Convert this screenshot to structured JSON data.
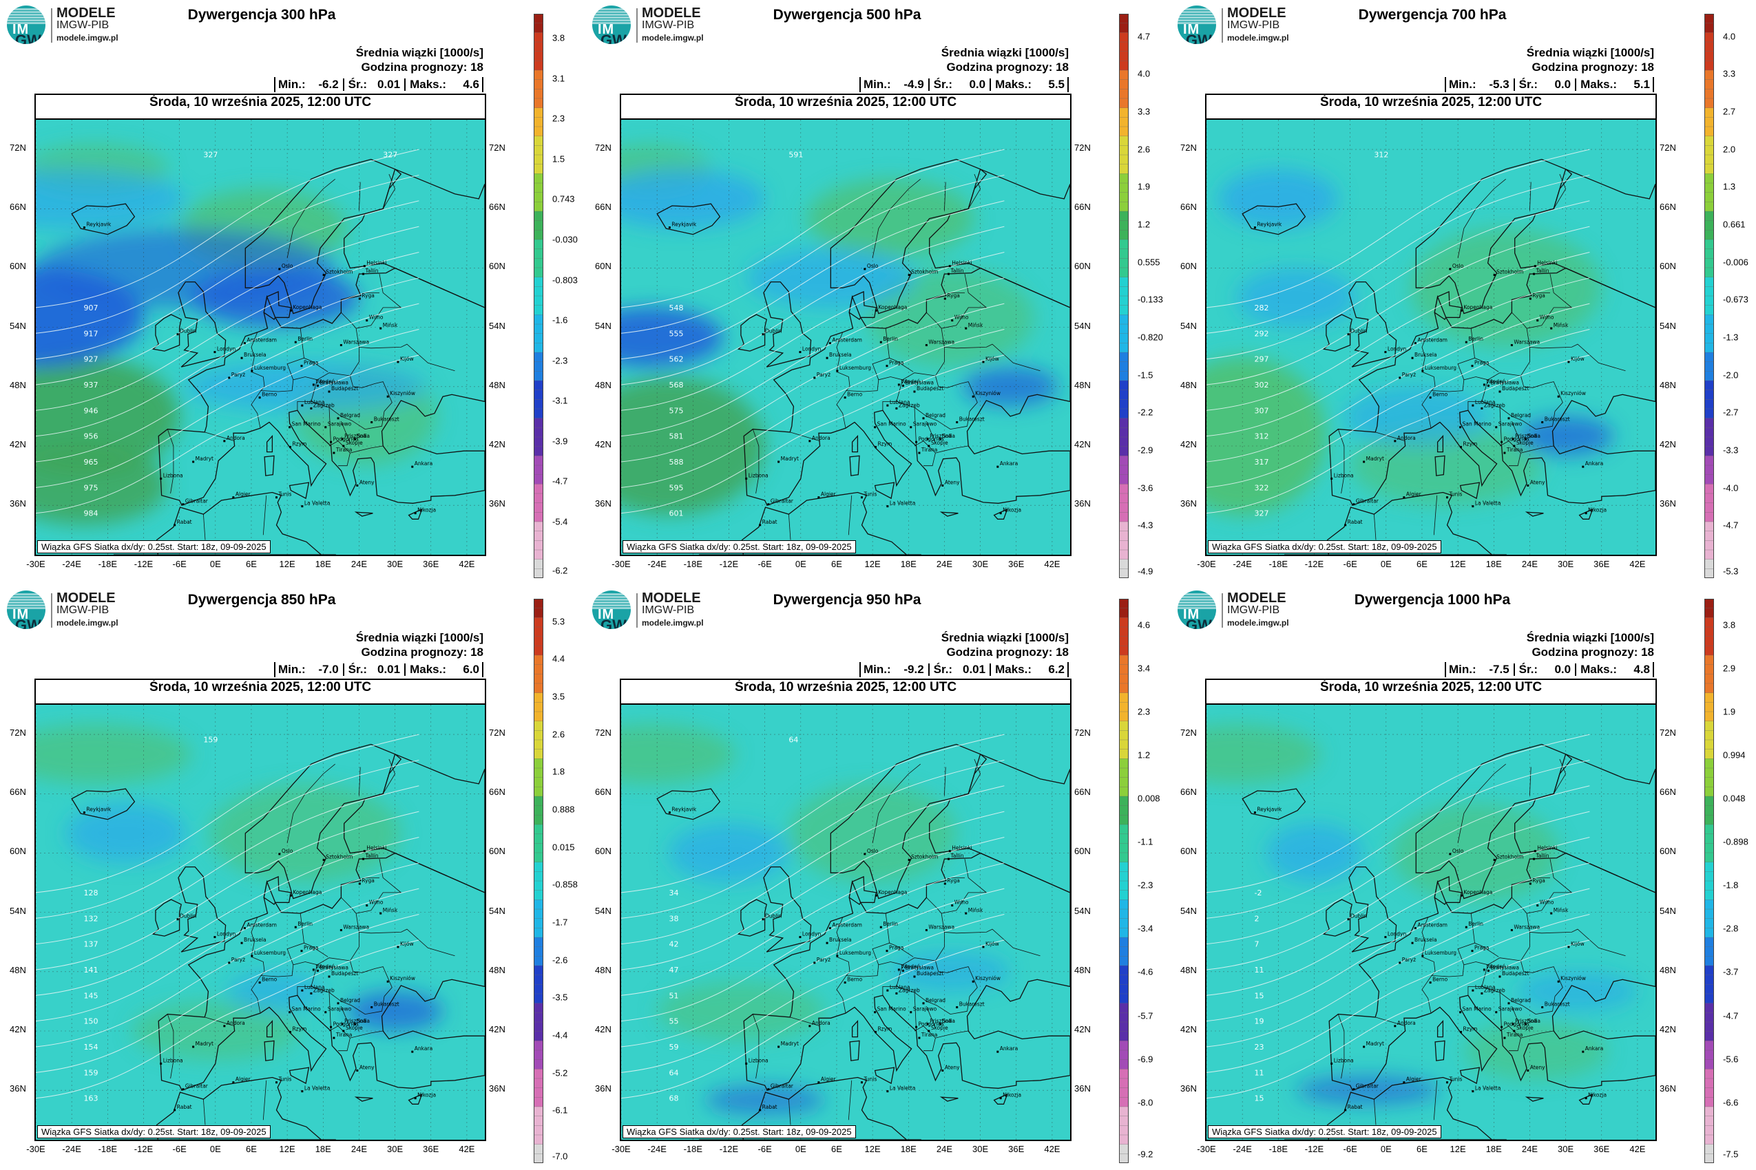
{
  "logo": {
    "title": "MODELE",
    "subtitle": "IMGW-PIB",
    "url": "modele.imgw.pl",
    "mark1": "IM",
    "mark2": "GW"
  },
  "common": {
    "header1": "Średnia wiązki [1000/s]",
    "header2": "Godzina prognozy: 18",
    "min_label": "Min.:",
    "avg_label": "Śr.:",
    "max_label": "Maks.:",
    "date": "Środa, 10 września 2025, 12:00 UTC",
    "footer": "Wiązka GFS Siatka dx/dy: 0.25st. Start: 18z, 09-09-2025",
    "lat_labels": [
      "72N",
      "66N",
      "60N",
      "54N",
      "48N",
      "42N",
      "36N"
    ],
    "lon_labels": [
      "-30E",
      "-24E",
      "-18E",
      "-12E",
      "-6E",
      "0E",
      "6E",
      "12E",
      "18E",
      "24E",
      "30E",
      "36E",
      "42E"
    ]
  },
  "colors": {
    "ocean_neg": "#2aa9e8",
    "neutral": "#38d1c9",
    "positive": "#4fbf6e",
    "strong_positive": "#3fa65c",
    "strong_negative": "#1f5fd9",
    "coast": "#111111",
    "contour": "#e8f4f4",
    "colorbar": [
      "#d9d9d9",
      "#e8b3d1",
      "#d66fb5",
      "#a24bb6",
      "#5a2fa8",
      "#2040c8",
      "#1f7fe0",
      "#20b6e6",
      "#24d1d1",
      "#33c98f",
      "#3db25a",
      "#8ccf3b",
      "#d9d63a",
      "#f2b32d",
      "#e9772a",
      "#cc3b1f",
      "#9b1f14"
    ]
  },
  "panels": [
    {
      "title": "Dywergencja 300 hPa",
      "min": "-6.2",
      "avg": "0.01",
      "max": "4.6",
      "ticks": [
        "3.8",
        "3.1",
        "2.3",
        "1.5",
        "0.743",
        "-0.030",
        "-0.803",
        "-1.6",
        "-2.3",
        "-3.1",
        "-3.9",
        "-4.7",
        "-5.4",
        "-6.2"
      ],
      "contours": [
        "907",
        "917",
        "927",
        "937",
        "946",
        "956",
        "965",
        "975",
        "984",
        "327",
        "327"
      ]
    },
    {
      "title": "Dywergencja 500 hPa",
      "min": "-4.9",
      "avg": "0.0",
      "max": "5.5",
      "ticks": [
        "4.7",
        "4.0",
        "3.3",
        "2.6",
        "1.9",
        "1.2",
        "0.555",
        "-0.133",
        "-0.820",
        "-1.5",
        "-2.2",
        "-2.9",
        "-3.6",
        "-4.3",
        "-4.9"
      ],
      "contours": [
        "548",
        "555",
        "562",
        "568",
        "575",
        "581",
        "588",
        "595",
        "601",
        "591"
      ]
    },
    {
      "title": "Dywergencja 700 hPa",
      "min": "-5.3",
      "avg": "0.0",
      "max": "5.1",
      "ticks": [
        "4.0",
        "3.3",
        "2.7",
        "2.0",
        "1.3",
        "0.661",
        "-0.006",
        "-0.673",
        "-1.3",
        "-2.0",
        "-2.7",
        "-3.3",
        "-4.0",
        "-4.7",
        "-5.3"
      ],
      "contours": [
        "282",
        "292",
        "297",
        "302",
        "307",
        "312",
        "317",
        "322",
        "327",
        "312"
      ]
    },
    {
      "title": "Dywergencja 850 hPa",
      "min": "-7.0",
      "avg": "0.01",
      "max": "6.0",
      "ticks": [
        "5.3",
        "4.4",
        "3.5",
        "2.6",
        "1.8",
        "0.888",
        "0.015",
        "-0.858",
        "-1.7",
        "-2.6",
        "-3.5",
        "-4.4",
        "-5.2",
        "-6.1",
        "-7.0"
      ],
      "contours": [
        "128",
        "132",
        "137",
        "141",
        "145",
        "150",
        "154",
        "159",
        "163",
        "159"
      ]
    },
    {
      "title": "Dywergencja 950 hPa",
      "min": "-9.2",
      "avg": "0.01",
      "max": "6.2",
      "ticks": [
        "4.6",
        "3.4",
        "2.3",
        "1.2",
        "0.008",
        "-1.1",
        "-2.3",
        "-3.4",
        "-4.6",
        "-5.7",
        "-6.9",
        "-8.0",
        "-9.2"
      ],
      "contours": [
        "34",
        "38",
        "42",
        "47",
        "51",
        "55",
        "59",
        "64",
        "68",
        "64"
      ]
    },
    {
      "title": "Dywergencja 1000 hPa",
      "min": "-7.5",
      "avg": "0.0",
      "max": "4.8",
      "ticks": [
        "3.8",
        "2.9",
        "1.9",
        "0.994",
        "0.048",
        "-0.898",
        "-1.8",
        "-2.8",
        "-3.7",
        "-4.7",
        "-5.6",
        "-6.6",
        "-7.5"
      ],
      "contours": [
        "-2",
        "2",
        "7",
        "11",
        "15",
        "19",
        "23",
        "11",
        "15"
      ]
    }
  ],
  "cities": [
    "Oslo",
    "Helsinki",
    "Sztokholm",
    "Tallin",
    "Ryga",
    "Kopenhaga",
    "Wilno",
    "Mińsk",
    "Amsterdam",
    "Berlin",
    "Londyn",
    "Warszawa",
    "Bruksela",
    "Praga",
    "Kijów",
    "Luksemburg",
    "Paryż",
    "Wiedeń",
    "Bratysława",
    "Berno",
    "Budapeszt",
    "Kiszyniów",
    "Lublana",
    "Zagrzeb",
    "Belgrad",
    "Bukareszt",
    "Sarajewo",
    "San Marino",
    "Podgorica",
    "Prisztina",
    "Sofia",
    "Skopje",
    "Andora",
    "Madryt",
    "Rzym",
    "Tirana",
    "Ateny",
    "Ankara",
    "Lizbona",
    "Gibraltar",
    "Algier",
    "Tunis",
    "La Valetta",
    "Rabat",
    "Nikozja",
    "Reykjavik",
    "Dublin"
  ]
}
